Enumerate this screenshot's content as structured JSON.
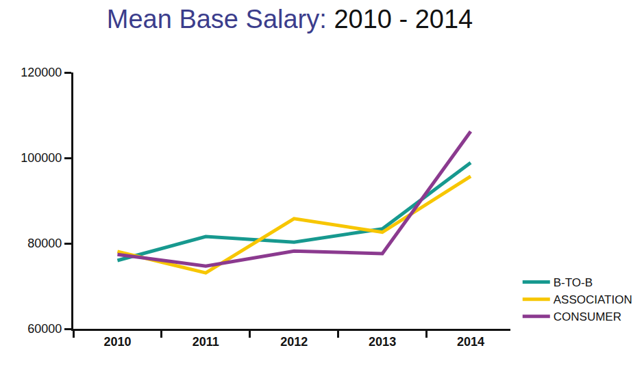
{
  "chart_data": {
    "type": "line",
    "title": "Mean Base Salary: 2010 - 2014",
    "categories": [
      "2010",
      "2011",
      "2012",
      "2013",
      "2014"
    ],
    "series": [
      {
        "name": "B-TO-B",
        "color": "#17998f",
        "values": [
          76000,
          81600,
          80300,
          83400,
          98900
        ]
      },
      {
        "name": "ASSOCIATION",
        "color": "#f7c600",
        "values": [
          78100,
          73100,
          85800,
          82600,
          95700
        ]
      },
      {
        "name": "CONSUMER",
        "color": "#8b3a8f",
        "values": [
          77400,
          74700,
          78200,
          77600,
          106200
        ]
      }
    ],
    "ylim": [
      60000,
      120000
    ],
    "yticks": [
      60000,
      80000,
      100000,
      120000
    ],
    "grid": false,
    "legend": "lower right"
  }
}
